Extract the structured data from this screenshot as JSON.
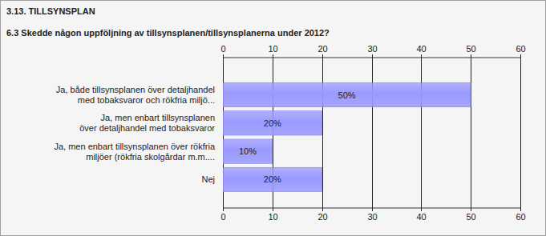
{
  "chart_data": {
    "type": "bar",
    "subtitle": "3.13. TILLSYNSPLAN",
    "title": "6.3 Skedde någon uppföljning av tillsynsplanen/tillsynsplanerna under 2012?",
    "categories": [
      "Ja, både tillsynsplanen över detaljhandel\nmed tobaksvaror och rökfria miljö...",
      "Ja, men enbart tillsynsplanen\növer detaljhandel med tobaksvaror",
      "Ja, men enbart tillsynsplanen över rökfria\nmiljöer (rökfria skolgårdar m.m....",
      "Nej"
    ],
    "values": [
      50,
      20,
      10,
      20
    ],
    "value_labels": [
      "50%",
      "20%",
      "10%",
      "20%"
    ],
    "color": "#9999ff",
    "orientation": "horizontal",
    "data_labels": true,
    "grid": true,
    "xlim": [
      0,
      60
    ],
    "xticks": [
      0,
      10,
      20,
      30,
      40,
      50,
      60
    ]
  }
}
